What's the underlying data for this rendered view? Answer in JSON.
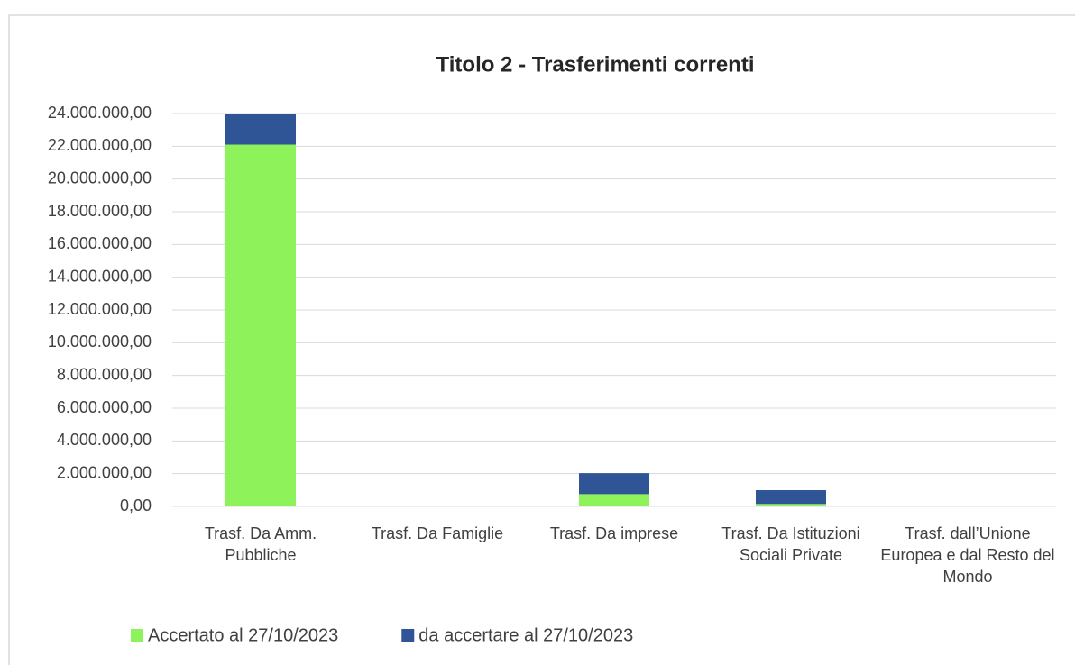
{
  "chart_data": {
    "type": "stacked_bar",
    "title": "Titolo 2 - Trasferimenti correnti",
    "categories": [
      "Trasf.  Da Amm. Pubbliche",
      "Trasf.  Da Famiglie",
      "Trasf. Da imprese",
      "Trasf. Da Istituzioni Sociali Private",
      "Trasf.  dall’Unione Europea e dal Resto del Mondo"
    ],
    "series": [
      {
        "name": "Accertato al 27/10/2023",
        "color": "#8ef25a",
        "values": [
          22100000,
          0,
          750000,
          150000,
          0
        ]
      },
      {
        "name": "da accertare al 27/10/2023",
        "color": "#2f5597",
        "values": [
          1900000,
          0,
          1280000,
          840000,
          0
        ]
      }
    ],
    "ylim": [
      0,
      24000000
    ],
    "yticks": [
      {
        "value": 0,
        "label": "0,00"
      },
      {
        "value": 2000000,
        "label": "2.000.000,00"
      },
      {
        "value": 4000000,
        "label": "4.000.000,00"
      },
      {
        "value": 6000000,
        "label": "6.000.000,00"
      },
      {
        "value": 8000000,
        "label": "8.000.000,00"
      },
      {
        "value": 10000000,
        "label": "10.000.000,00"
      },
      {
        "value": 12000000,
        "label": "12.000.000,00"
      },
      {
        "value": 14000000,
        "label": "14.000.000,00"
      },
      {
        "value": 16000000,
        "label": "16.000.000,00"
      },
      {
        "value": 18000000,
        "label": "18.000.000,00"
      },
      {
        "value": 20000000,
        "label": "20.000.000,00"
      },
      {
        "value": 22000000,
        "label": "22.000.000,00"
      },
      {
        "value": 24000000,
        "label": "24.000.000,00"
      }
    ],
    "grid": true,
    "legend": "bottom"
  }
}
